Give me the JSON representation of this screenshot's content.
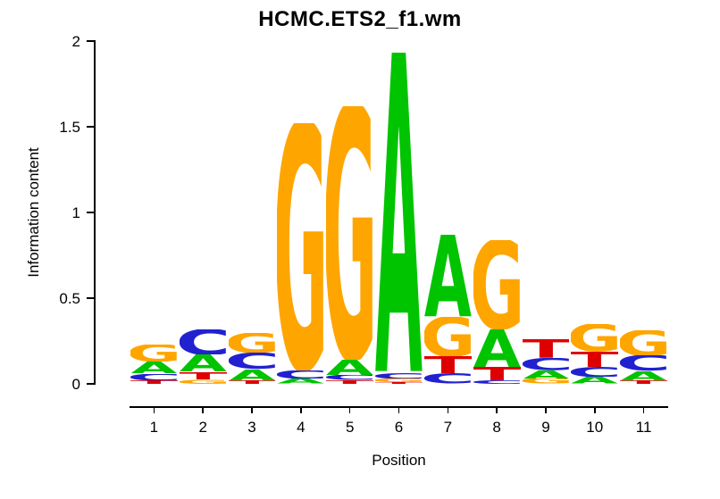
{
  "chart_data": {
    "type": "sequence_logo",
    "title": "HCMC.ETS2_f1.wm",
    "xlabel": "Position",
    "ylabel": "Information content",
    "ylim": [
      0,
      2
    ],
    "ytick_values": [
      0,
      0.5,
      1,
      1.5,
      2
    ],
    "ytick_labels": [
      "0",
      "0.5",
      "1",
      "1.5",
      "2"
    ],
    "categories": [
      "1",
      "2",
      "3",
      "4",
      "5",
      "6",
      "7",
      "8",
      "9",
      "10",
      "11"
    ],
    "legend_position": "none",
    "grid": false,
    "letter_colors": {
      "A": "#00C400",
      "C": "#2121D1",
      "G": "#FFA500",
      "T": "#DE0000"
    },
    "stacks": [
      [
        {
          "letter": "T",
          "bits": 0.02
        },
        {
          "letter": "C",
          "bits": 0.04
        },
        {
          "letter": "A",
          "bits": 0.07
        },
        {
          "letter": "G",
          "bits": 0.1
        }
      ],
      [
        {
          "letter": "G",
          "bits": 0.025
        },
        {
          "letter": "T",
          "bits": 0.045
        },
        {
          "letter": "A",
          "bits": 0.1
        },
        {
          "letter": "C",
          "bits": 0.15
        }
      ],
      [
        {
          "letter": "T",
          "bits": 0.02
        },
        {
          "letter": "A",
          "bits": 0.065
        },
        {
          "letter": "C",
          "bits": 0.095
        },
        {
          "letter": "G",
          "bits": 0.115
        }
      ],
      [
        {
          "letter": "A",
          "bits": 0.03
        },
        {
          "letter": "C",
          "bits": 0.05
        },
        {
          "letter": "G",
          "bits": 1.44
        }
      ],
      [
        {
          "letter": "T",
          "bits": 0.02
        },
        {
          "letter": "C",
          "bits": 0.03
        },
        {
          "letter": "A",
          "bits": 0.09
        },
        {
          "letter": "G",
          "bits": 1.48
        }
      ],
      [
        {
          "letter": "T",
          "bits": 0.01
        },
        {
          "letter": "G",
          "bits": 0.02
        },
        {
          "letter": "C",
          "bits": 0.035
        },
        {
          "letter": "A",
          "bits": 1.87
        }
      ],
      [
        {
          "letter": "C",
          "bits": 0.06
        },
        {
          "letter": "T",
          "bits": 0.1
        },
        {
          "letter": "G",
          "bits": 0.23
        },
        {
          "letter": "A",
          "bits": 0.48
        }
      ],
      [
        {
          "letter": "C",
          "bits": 0.02
        },
        {
          "letter": "T",
          "bits": 0.08
        },
        {
          "letter": "A",
          "bits": 0.22
        },
        {
          "letter": "G",
          "bits": 0.52
        }
      ],
      [
        {
          "letter": "G",
          "bits": 0.03
        },
        {
          "letter": "A",
          "bits": 0.05
        },
        {
          "letter": "C",
          "bits": 0.07
        },
        {
          "letter": "T",
          "bits": 0.11
        }
      ],
      [
        {
          "letter": "A",
          "bits": 0.04
        },
        {
          "letter": "C",
          "bits": 0.06
        },
        {
          "letter": "T",
          "bits": 0.09
        },
        {
          "letter": "G",
          "bits": 0.16
        }
      ],
      [
        {
          "letter": "T",
          "bits": 0.02
        },
        {
          "letter": "A",
          "bits": 0.055
        },
        {
          "letter": "C",
          "bits": 0.09
        },
        {
          "letter": "G",
          "bits": 0.15
        }
      ]
    ]
  }
}
